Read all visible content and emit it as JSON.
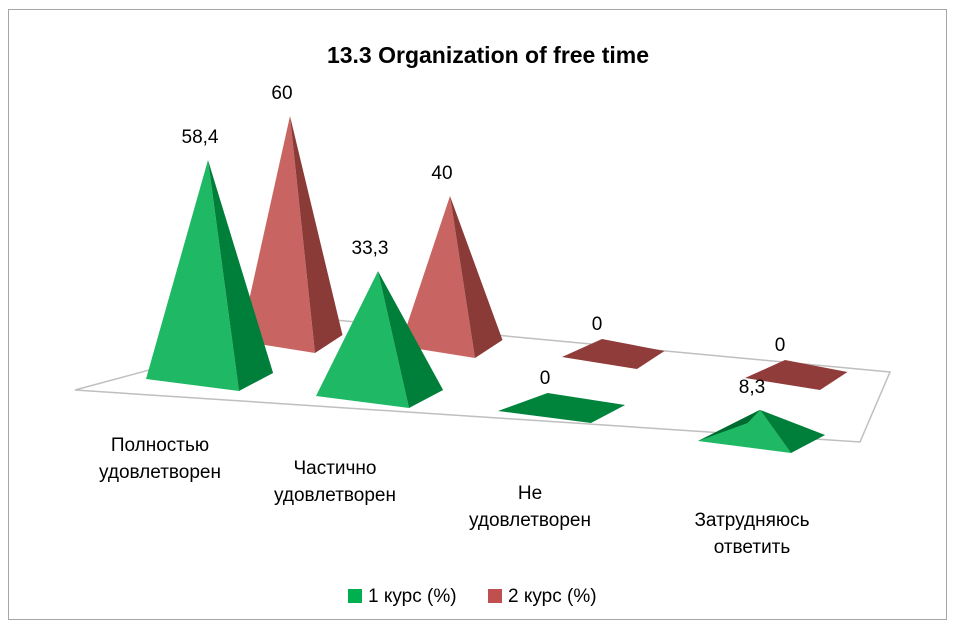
{
  "chart_data": {
    "type": "pyramid",
    "title": "13.3 Organization of free time",
    "categories": [
      "Полностью удовлетворен",
      "Частично удовлетворен",
      "Не удовлетворен",
      "Затрудняюсь ответить"
    ],
    "series": [
      {
        "name": "1 курс (%)",
        "color": "#00b050",
        "values": [
          58.4,
          33.3,
          0,
          8.3
        ],
        "value_labels": [
          "58,4",
          "33,3",
          "0",
          "8,3"
        ]
      },
      {
        "name": "2 курс (%)",
        "color": "#c0504d",
        "values": [
          60,
          40,
          0,
          0
        ]
      }
    ],
    "legend": "bottom"
  }
}
